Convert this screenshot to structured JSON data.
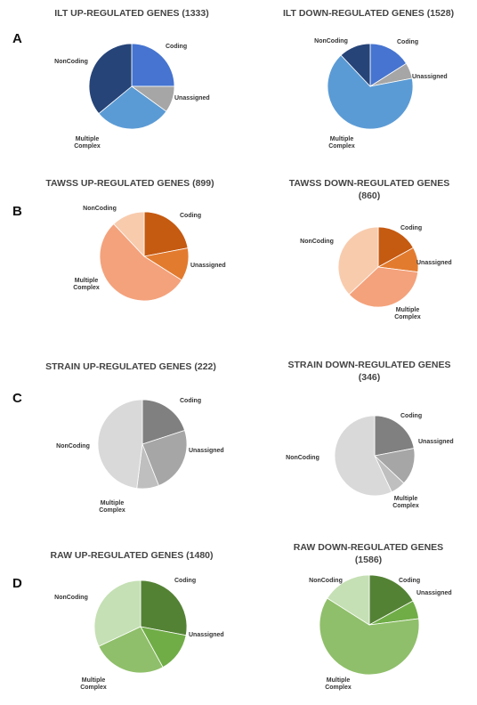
{
  "chart_data": [
    {
      "type": "pie",
      "panel": "A",
      "title": "ILT UP-REGULATED GENES (1333)",
      "categories": [
        "Coding",
        "Unassigned",
        "Multiple Complex",
        "NonCoding"
      ],
      "values": [
        25,
        10,
        29,
        36
      ],
      "colors": [
        "#4674d0",
        "#a6a6a6",
        "#5b9bd5",
        "#264478"
      ]
    },
    {
      "type": "pie",
      "panel": "A",
      "title": "ILT DOWN-REGULATED GENES (1528)",
      "categories": [
        "Coding",
        "Unassigned",
        "Multiple Complex",
        "NonCoding"
      ],
      "values": [
        16,
        6,
        66,
        12
      ],
      "colors": [
        "#4674d0",
        "#a6a6a6",
        "#5b9bd5",
        "#264478"
      ]
    },
    {
      "type": "pie",
      "panel": "B",
      "title": "TAWSS UP-REGULATED GENES (899)",
      "categories": [
        "Coding",
        "Unassigned",
        "Multiple Complex",
        "NonCoding"
      ],
      "values": [
        22,
        12,
        54,
        12
      ],
      "colors": [
        "#c55a11",
        "#e37b2e",
        "#f4a27c",
        "#f8cbad"
      ]
    },
    {
      "type": "pie",
      "panel": "B",
      "title": "TAWSS DOWN-REGULATED GENES (860)",
      "categories": [
        "Coding",
        "Unassigned",
        "Multiple Complex",
        "NonCoding"
      ],
      "values": [
        17,
        10,
        36,
        37
      ],
      "colors": [
        "#c55a11",
        "#e37b2e",
        "#f4a27c",
        "#f8cbad"
      ]
    },
    {
      "type": "pie",
      "panel": "C",
      "title": "STRAIN UP-REGULATED GENES (222)",
      "categories": [
        "Coding",
        "Unassigned",
        "Multiple Complex",
        "NonCoding"
      ],
      "values": [
        20,
        24,
        8,
        48
      ],
      "colors": [
        "#808080",
        "#a6a6a6",
        "#bfbfbf",
        "#d9d9d9"
      ]
    },
    {
      "type": "pie",
      "panel": "C",
      "title": "STRAIN DOWN-REGULATED GENES (346)",
      "categories": [
        "Coding",
        "Unassigned",
        "Multiple Complex",
        "NonCoding"
      ],
      "values": [
        22,
        15,
        6,
        57
      ],
      "colors": [
        "#808080",
        "#a6a6a6",
        "#bfbfbf",
        "#d9d9d9"
      ]
    },
    {
      "type": "pie",
      "panel": "D",
      "title": "RAW UP-REGULATED GENES (1480)",
      "categories": [
        "Coding",
        "Unassigned",
        "Multiple Complex",
        "NonCoding"
      ],
      "values": [
        28,
        14,
        26,
        32
      ],
      "colors": [
        "#548235",
        "#70ad47",
        "#8fbf6a",
        "#c5e0b4"
      ]
    },
    {
      "type": "pie",
      "panel": "D",
      "title": "RAW DOWN-REGULATED GENES (1586)",
      "categories": [
        "Coding",
        "Unassigned",
        "Multiple Complex",
        "NonCoding"
      ],
      "values": [
        17,
        6,
        61,
        16
      ],
      "colors": [
        "#548235",
        "#70ad47",
        "#8fbf6a",
        "#c5e0b4"
      ]
    }
  ]
}
